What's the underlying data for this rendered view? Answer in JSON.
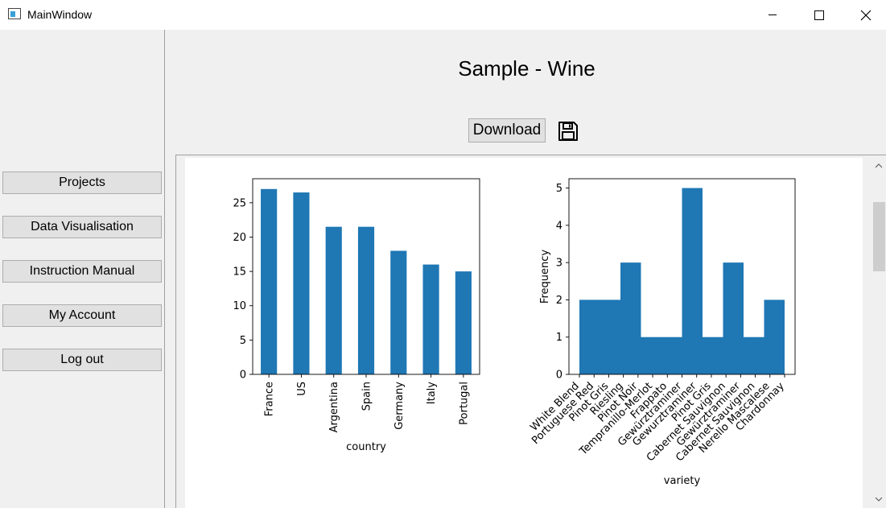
{
  "window": {
    "title": "MainWindow"
  },
  "sidebar": {
    "items": [
      {
        "label": "Projects"
      },
      {
        "label": "Data Visualisation"
      },
      {
        "label": "Instruction Manual"
      },
      {
        "label": "My Account"
      },
      {
        "label": "Log out"
      }
    ]
  },
  "main": {
    "title": "Sample - Wine",
    "download_label": "Download"
  },
  "colors": {
    "bar": "#1f77b4"
  },
  "chart_data": [
    {
      "type": "bar",
      "categories": [
        "France",
        "US",
        "Argentina",
        "Spain",
        "Germany",
        "Italy",
        "Portugal"
      ],
      "values": [
        27,
        26.5,
        21.5,
        21.5,
        18,
        16,
        15
      ],
      "xlabel": "country",
      "ylabel": "",
      "ylim": [
        0,
        28.5
      ],
      "yticks": [
        0,
        5,
        10,
        15,
        20,
        25
      ],
      "grid": false
    },
    {
      "type": "bar",
      "categories": [
        "White Blend",
        "Portuguese Red",
        "Pinot Gris",
        "Riesling",
        "Pinot Noir",
        "Tempranillo-Merlot",
        "Frappato",
        "Gewürztraminer",
        "Gewurztraminer",
        "Pinot Gris",
        "Cabernet Sauvignon",
        "Gewürztraminer",
        "Cabernet Sauvignon",
        "Nerello Mascalese",
        "Chardonnay"
      ],
      "histogram_bins": [
        2,
        2,
        3,
        1,
        1,
        5,
        1,
        3,
        1,
        2
      ],
      "xlabel": "variety",
      "ylabel": "Frequency",
      "ylim": [
        0,
        5.25
      ],
      "yticks": [
        0,
        1,
        2,
        3,
        4,
        5
      ],
      "grid": false
    }
  ]
}
